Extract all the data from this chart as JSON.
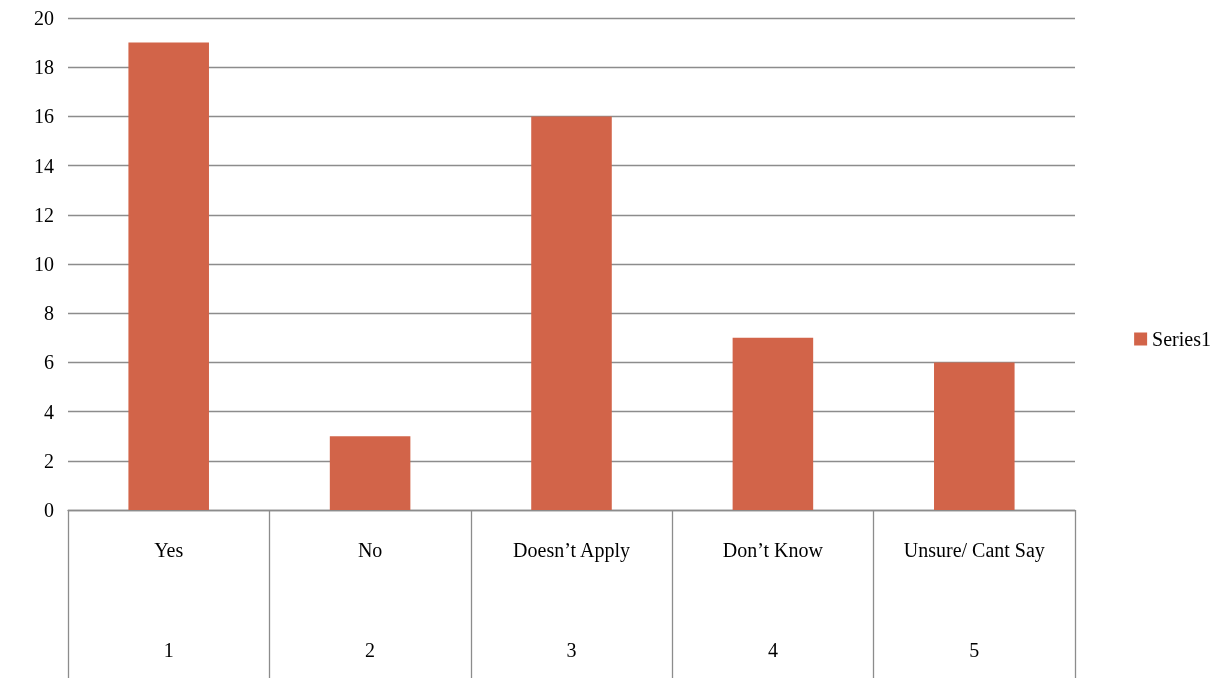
{
  "chart_data": {
    "type": "bar",
    "categories": [
      "Yes",
      "No",
      "Doesn’t Apply",
      "Don’t Know",
      "Unsure/ Cant Say"
    ],
    "series": [
      {
        "name": "Series1",
        "color": "#d26449",
        "values": [
          19,
          3,
          16,
          7,
          6
        ]
      }
    ],
    "ylim": [
      0,
      20
    ],
    "yticks": [
      0,
      2,
      4,
      6,
      8,
      10,
      12,
      14,
      16,
      18,
      20
    ],
    "grid": "y",
    "legend": "right",
    "annotations": [
      "1",
      "2",
      "3",
      "4",
      "5"
    ]
  }
}
